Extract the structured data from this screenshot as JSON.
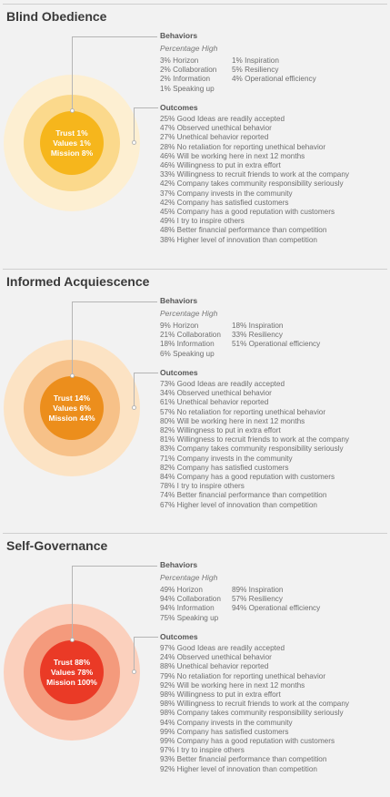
{
  "labels": {
    "behaviors": "Behaviors",
    "percentage_high": "Percentage High",
    "outcomes": "Outcomes"
  },
  "sections": [
    {
      "title": "Blind Obedience",
      "colors": {
        "outer": "#fdefd2",
        "middle": "#fbd98c",
        "inner": "#f6b61c"
      },
      "circle": [
        "Trust 1%",
        "Values 1%",
        "Mission 8%"
      ],
      "behaviors_col1": [
        "3% Horizon",
        "2% Collaboration",
        "2% Information",
        "1% Speaking up"
      ],
      "behaviors_col2": [
        "1% Inspiration",
        "5% Resiliency",
        "4% Operational efficiency"
      ],
      "outcomes": [
        "25% Good Ideas are readily accepted",
        "47% Observed unethical behavior",
        "27% Unethical behavior reported",
        "28% No retaliation for reporting unethical behavior",
        "46% Will be working here in next 12 months",
        "46% Willingness to put in extra effort",
        "33% Willingness to recruit friends to work at the company",
        "42% Company takes community responsibility seriously",
        "37% Company invests in the community",
        "42% Company has satisfied customers",
        "45% Company has a good reputation with customers",
        "49% I try to inspire others",
        "48% Better financial performance than competition",
        "38% Higher level of innovation than competition"
      ]
    },
    {
      "title": "Informed Acquiescence",
      "colors": {
        "outer": "#fce3c4",
        "middle": "#f7c188",
        "inner": "#ec8e1c"
      },
      "circle": [
        "Trust 14%",
        "Values 6%",
        "Mission 44%"
      ],
      "behaviors_col1": [
        "9% Horizon",
        "21% Collaboration",
        "18% Information",
        "6% Speaking up"
      ],
      "behaviors_col2": [
        "18% Inspiration",
        "33% Resiliency",
        "51% Operational efficiency"
      ],
      "outcomes": [
        "73% Good Ideas are readily accepted",
        "34% Observed unethical behavior",
        "61% Unethical behavior reported",
        "57% No retaliation for reporting unethical behavior",
        "80% Will be working here in next 12 months",
        "82% Willingness to put in extra effort",
        "81% Willingness to recruit friends to work at the company",
        "83% Company takes community responsibility seriously",
        "71% Company invests in the community",
        "82% Company has satisfied customers",
        "84% Company has a good reputation with customers",
        "78% I try to inspire others",
        "74% Better financial performance than competition",
        "67% Higher level of innovation than competition"
      ]
    },
    {
      "title": "Self-Governance",
      "colors": {
        "outer": "#fbd0bd",
        "middle": "#f49a7c",
        "inner": "#ea3a26"
      },
      "circle": [
        "Trust 88%",
        "Values 78%",
        "Mission 100%"
      ],
      "behaviors_col1": [
        "49% Horizon",
        "94% Collaboration",
        "94% Information",
        "75% Speaking up"
      ],
      "behaviors_col2": [
        "89% Inspiration",
        "57% Resiliency",
        "94% Operational efficiency"
      ],
      "outcomes": [
        "97% Good Ideas are readily accepted",
        "24% Observed unethical behavior",
        "88% Unethical behavior reported",
        "79% No retaliation for reporting unethical behavior",
        "92% Will be working here in next 12 months",
        "98% Willingness to put in extra effort",
        "98% Willingness to recruit friends to work at the company",
        "98% Company takes community responsibility seriously",
        "94% Company invests in the community",
        "99% Company has satisfied customers",
        "99% Company has a good reputation with customers",
        "97% I try to inspire others",
        "93% Better financial performance than competition",
        "92% Higher level of innovation than competition"
      ]
    }
  ]
}
